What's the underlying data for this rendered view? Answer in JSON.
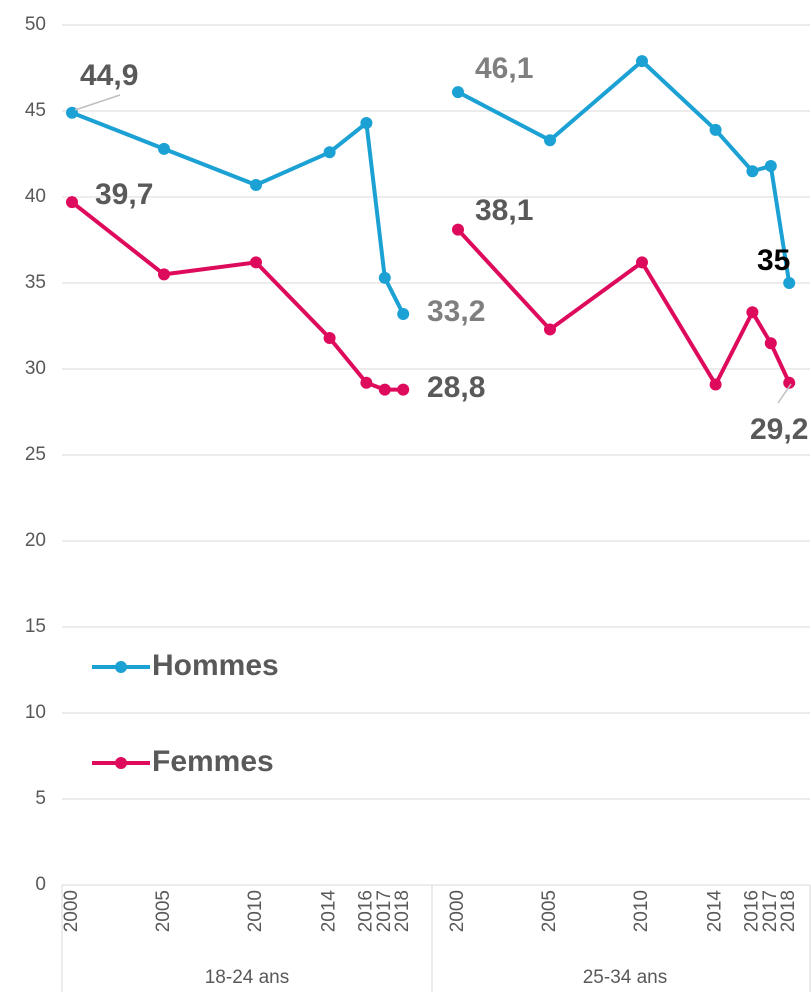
{
  "chart_data": {
    "type": "line",
    "groups": [
      "18-24 ans",
      "25-34 ans"
    ],
    "x": [
      [
        2000,
        2005,
        2010,
        2014,
        2016,
        2017,
        2018
      ],
      [
        2000,
        2005,
        2010,
        2014,
        2016,
        2017,
        2018
      ]
    ],
    "series": [
      {
        "name": "Hommes",
        "color": "#1ba1d3",
        "values": [
          [
            44.9,
            42.8,
            40.7,
            42.6,
            44.3,
            35.3,
            33.2
          ],
          [
            46.1,
            43.3,
            47.9,
            43.9,
            41.5,
            41.8,
            35
          ]
        ],
        "value_labels": [
          [
            "44,9",
            null,
            null,
            null,
            null,
            null,
            "33,2"
          ],
          [
            "46,1",
            null,
            null,
            null,
            null,
            null,
            "35"
          ]
        ]
      },
      {
        "name": "Femmes",
        "color": "#de0a5c",
        "values": [
          [
            39.7,
            35.5,
            36.2,
            31.8,
            29.2,
            28.8,
            28.8
          ],
          [
            38.1,
            32.3,
            36.2,
            29.1,
            33.3,
            31.5,
            29.2
          ]
        ],
        "value_labels": [
          [
            "39,7",
            null,
            null,
            null,
            null,
            null,
            "28,8"
          ],
          [
            "38,1",
            null,
            null,
            null,
            null,
            null,
            "29,2"
          ]
        ]
      }
    ],
    "ylim": [
      0,
      50
    ],
    "yticks": [
      0,
      5,
      10,
      15,
      20,
      25,
      30,
      35,
      40,
      45,
      50
    ],
    "grid": true,
    "legend": "left"
  }
}
